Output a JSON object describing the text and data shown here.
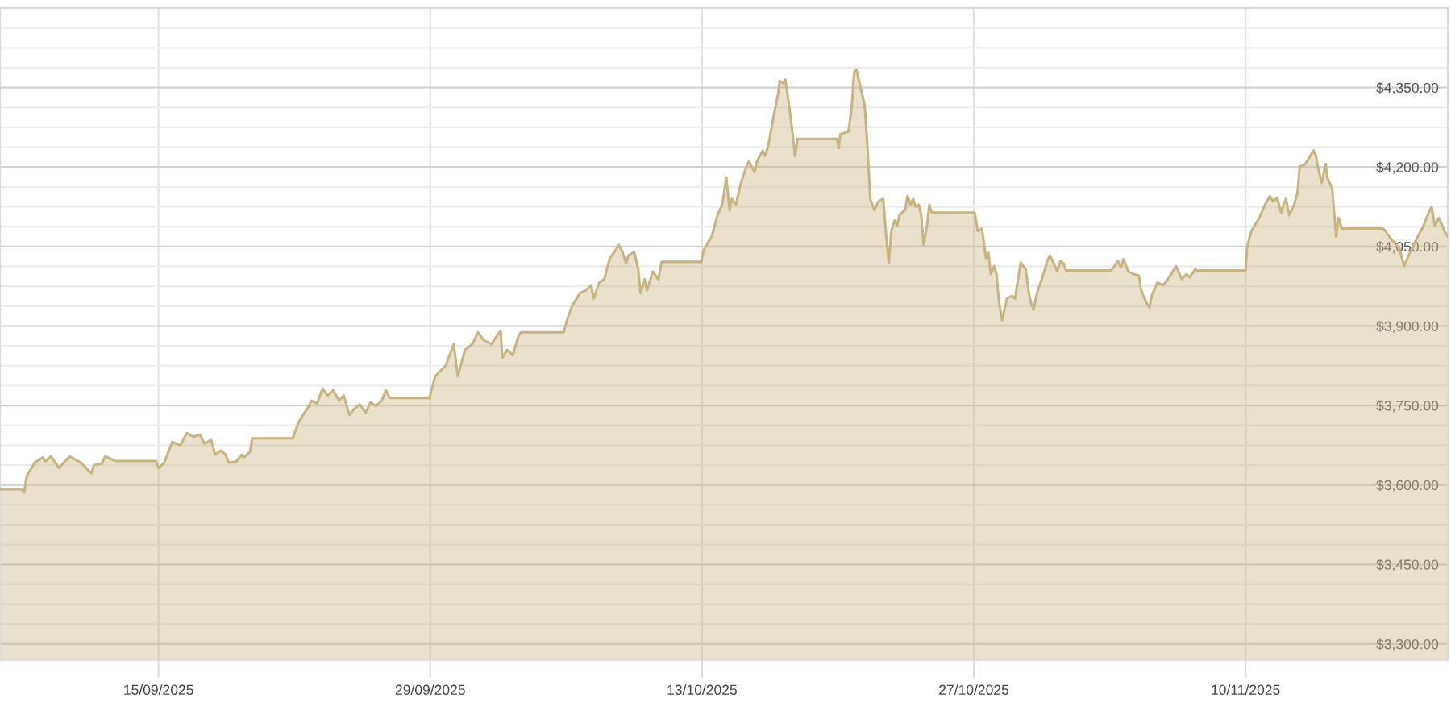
{
  "chart_data": {
    "type": "area",
    "x": [
      "2025-09-06T20:00",
      "2025-09-07T22:00",
      "2025-09-08T02:00",
      "2025-09-08T05:00",
      "2025-09-08T15:00",
      "2025-09-09T01:00",
      "2025-09-09T04:00",
      "2025-09-09T11:00",
      "2025-09-09T21:00",
      "2025-09-10T10:00",
      "2025-09-11T00:00",
      "2025-09-11T13:00",
      "2025-09-11T16:00",
      "2025-09-12T02:00",
      "2025-09-12T06:00",
      "2025-09-12T12:00",
      "2025-09-12T19:00",
      "2025-09-14T21:00",
      "2025-09-15T00:00",
      "2025-09-15T07:00",
      "2025-09-15T17:00",
      "2025-09-16T03:00",
      "2025-09-16T11:00",
      "2025-09-16T19:00",
      "2025-09-17T03:00",
      "2025-09-17T09:00",
      "2025-09-17T17:00",
      "2025-09-17T22:00",
      "2025-09-18T05:00",
      "2025-09-18T11:00",
      "2025-09-18T15:00",
      "2025-09-19T00:00",
      "2025-09-19T07:00",
      "2025-09-19T10:00",
      "2025-09-19T17:00",
      "2025-09-19T20:00",
      "2025-09-21T22:00",
      "2025-09-22T05:00",
      "2025-09-22T11:00",
      "2025-09-22T18:00",
      "2025-09-22T21:00",
      "2025-09-23T04:00",
      "2025-09-23T11:00",
      "2025-09-23T17:00",
      "2025-09-24T00:00",
      "2025-09-24T07:00",
      "2025-09-24T13:00",
      "2025-09-24T20:00",
      "2025-09-25T02:00",
      "2025-09-25T09:00",
      "2025-09-25T16:00",
      "2025-09-25T22:00",
      "2025-09-26T05:00",
      "2025-09-26T12:00",
      "2025-09-26T17:00",
      "2025-09-26T22:00",
      "2025-09-28T23:00",
      "2025-09-29T06:00",
      "2025-09-29T19:00",
      "2025-09-30T05:00",
      "2025-09-30T10:00",
      "2025-09-30T19:00",
      "2025-10-01T04:00",
      "2025-10-01T11:00",
      "2025-10-01T18:00",
      "2025-10-02T04:00",
      "2025-10-02T10:00",
      "2025-10-02T15:00",
      "2025-10-02T17:00",
      "2025-10-02T23:00",
      "2025-10-03T06:00",
      "2025-10-03T13:00",
      "2025-10-03T16:00",
      "2025-10-05T21:00",
      "2025-10-06T01:00",
      "2025-10-06T07:00",
      "2025-10-06T17:00",
      "2025-10-07T00:00",
      "2025-10-07T07:00",
      "2025-10-07T10:00",
      "2025-10-07T17:00",
      "2025-10-07T23:00",
      "2025-10-08T06:00",
      "2025-10-08T13:00",
      "2025-10-08T17:00",
      "2025-10-08T22:00",
      "2025-10-09T02:00",
      "2025-10-09T05:00",
      "2025-10-09T12:00",
      "2025-10-09T17:00",
      "2025-10-09T20:00",
      "2025-10-10T01:00",
      "2025-10-10T04:00",
      "2025-10-10T11:00",
      "2025-10-10T18:00",
      "2025-10-10T22:00",
      "2025-10-12T23:00",
      "2025-10-13T02:00",
      "2025-10-13T12:00",
      "2025-10-13T19:00",
      "2025-10-14T01:00",
      "2025-10-14T06:00",
      "2025-10-14T10:00",
      "2025-10-14T13:00",
      "2025-10-14T18:00",
      "2025-10-15T00:00",
      "2025-10-15T07:00",
      "2025-10-15T10:00",
      "2025-10-15T17:00",
      "2025-10-15T20:00",
      "2025-10-16T03:00",
      "2025-10-16T06:00",
      "2025-10-16T10:00",
      "2025-10-16T16:00",
      "2025-10-16T22:00",
      "2025-10-17T00:00",
      "2025-10-17T04:00",
      "2025-10-17T07:00",
      "2025-10-17T12:00",
      "2025-10-17T16:00",
      "2025-10-17T19:00",
      "2025-10-17T22:00",
      "2025-10-19T23:00",
      "2025-10-20T01:00",
      "2025-10-20T03:00",
      "2025-10-20T13:00",
      "2025-10-20T17:00",
      "2025-10-20T20:00",
      "2025-10-20T23:00",
      "2025-10-21T02:00",
      "2025-10-21T09:00",
      "2025-10-21T12:00",
      "2025-10-21T16:00",
      "2025-10-21T21:00",
      "2025-10-22T02:00",
      "2025-10-22T08:00",
      "2025-10-22T12:00",
      "2025-10-22T15:00",
      "2025-10-22T18:00",
      "2025-10-22T22:00",
      "2025-10-23T01:00",
      "2025-10-23T04:00",
      "2025-10-23T11:00",
      "2025-10-23T14:00",
      "2025-10-23T18:00",
      "2025-10-23T21:00",
      "2025-10-24T00:00",
      "2025-10-24T04:00",
      "2025-10-24T07:00",
      "2025-10-24T10:00",
      "2025-10-24T14:00",
      "2025-10-24T17:00",
      "2025-10-24T20:00",
      "2025-10-27T01:00",
      "2025-10-27T05:00",
      "2025-10-27T10:00",
      "2025-10-27T15:00",
      "2025-10-27T18:00",
      "2025-10-27T21:00",
      "2025-10-28T01:00",
      "2025-10-28T04:00",
      "2025-10-28T07:00",
      "2025-10-28T11:00",
      "2025-10-28T17:00",
      "2025-10-28T23:00",
      "2025-10-29T03:00",
      "2025-10-29T06:00",
      "2025-10-29T10:00",
      "2025-10-29T13:00",
      "2025-10-29T16:00",
      "2025-10-29T20:00",
      "2025-10-29T23:00",
      "2025-10-30T02:00",
      "2025-10-30T06:00",
      "2025-10-30T12:00",
      "2025-10-30T19:00",
      "2025-10-30T22:00",
      "2025-10-31T03:00",
      "2025-10-31T07:00",
      "2025-10-31T11:00",
      "2025-10-31T15:00",
      "2025-10-31T18:00",
      "2025-11-03T02:00",
      "2025-11-03T06:00",
      "2025-11-03T10:00",
      "2025-11-03T14:00",
      "2025-11-03T17:00",
      "2025-11-03T23:00",
      "2025-11-04T05:00",
      "2025-11-04T12:00",
      "2025-11-04T15:00",
      "2025-11-04T22:00",
      "2025-11-05T01:00",
      "2025-11-05T04:00",
      "2025-11-05T11:00",
      "2025-11-05T18:00",
      "2025-11-06T00:00",
      "2025-11-06T10:00",
      "2025-11-06T17:00",
      "2025-11-06T23:00",
      "2025-11-07T03:00",
      "2025-11-07T10:00",
      "2025-11-07T13:00",
      "2025-11-07T16:00",
      "2025-11-10T00:00",
      "2025-11-10T02:00",
      "2025-11-10T07:00",
      "2025-11-10T17:00",
      "2025-11-11T00:00",
      "2025-11-11T06:00",
      "2025-11-11T10:00",
      "2025-11-11T15:00",
      "2025-11-11T20:00",
      "2025-11-11T23:00",
      "2025-11-12T02:00",
      "2025-11-12T06:00",
      "2025-11-12T12:00",
      "2025-11-12T16:00",
      "2025-11-12T19:00",
      "2025-11-13T02:00",
      "2025-11-13T08:00",
      "2025-11-13T12:00",
      "2025-11-13T15:00",
      "2025-11-13T18:00",
      "2025-11-13T22:00",
      "2025-11-14T03:00",
      "2025-11-14T05:00",
      "2025-11-14T11:00",
      "2025-11-14T16:00",
      "2025-11-14T19:00",
      "2025-11-14T23:00",
      "2025-11-17T02:00",
      "2025-11-17T05:00",
      "2025-11-17T12:00",
      "2025-11-17T22:00",
      "2025-11-18T04:00",
      "2025-11-18T11:00",
      "2025-11-18T21:00",
      "2025-11-19T04:00",
      "2025-11-19T09:00",
      "2025-11-19T14:00",
      "2025-11-19T18:00",
      "2025-11-19T23:00",
      "2025-11-20T06:00",
      "2025-11-20T10:00"
    ],
    "series": [
      {
        "color": "#c8b480",
        "values": [
          3592,
          3592,
          3586,
          3617,
          3642,
          3652,
          3644,
          3654,
          3632,
          3654,
          3642,
          3622,
          3637,
          3640,
          3654,
          3650,
          3645,
          3645,
          3632,
          3642,
          3681,
          3675,
          3698,
          3691,
          3695,
          3678,
          3685,
          3657,
          3665,
          3657,
          3642,
          3644,
          3657,
          3652,
          3662,
          3688,
          3688,
          3718,
          3733,
          3749,
          3759,
          3754,
          3782,
          3769,
          3779,
          3759,
          3769,
          3732,
          3744,
          3752,
          3736,
          3756,
          3749,
          3759,
          3779,
          3764,
          3764,
          3805,
          3825,
          3866,
          3805,
          3855,
          3866,
          3888,
          3873,
          3866,
          3881,
          3891,
          3840,
          3855,
          3845,
          3881,
          3888,
          3888,
          3911,
          3937,
          3962,
          3967,
          3977,
          3952,
          3982,
          3988,
          4028,
          4043,
          4053,
          4038,
          4018,
          4033,
          4040,
          4008,
          3962,
          3988,
          3967,
          4003,
          3988,
          4021,
          4021,
          4043,
          4069,
          4109,
          4129,
          4180,
          4119,
          4140,
          4129,
          4170,
          4201,
          4211,
          4190,
          4211,
          4231,
          4221,
          4241,
          4292,
          4338,
          4363,
          4358,
          4365,
          4312,
          4262,
          4221,
          4253,
          4253,
          4236,
          4262,
          4267,
          4312,
          4378,
          4384,
          4363,
          4317,
          4251,
          4140,
          4119,
          4135,
          4140,
          4064,
          4020,
          4079,
          4099,
          4089,
          4109,
          4119,
          4145,
          4129,
          4140,
          4125,
          4129,
          4109,
          4053,
          4089,
          4129,
          4114,
          4114,
          4079,
          4084,
          4028,
          4038,
          3998,
          4013,
          3998,
          3947,
          3911,
          3952,
          3957,
          3952,
          3982,
          4020,
          4013,
          4008,
          3962,
          3942,
          3931,
          3962,
          3988,
          4023,
          4033,
          4018,
          4003,
          4023,
          4018,
          4005,
          4005,
          4013,
          4023,
          4011,
          4026,
          4003,
          3998,
          3995,
          3967,
          3942,
          3935,
          3957,
          3982,
          3977,
          3988,
          4013,
          3988,
          3998,
          3992,
          4008,
          4003,
          4005,
          4005,
          4050,
          4079,
          4104,
          4129,
          4145,
          4135,
          4142,
          4114,
          4129,
          4140,
          4109,
          4129,
          4150,
          4201,
          4206,
          4221,
          4231,
          4221,
          4196,
          4170,
          4206,
          4180,
          4160,
          4069,
          4104,
          4084,
          4084,
          4079,
          4064,
          4048,
          4013,
          4038,
          4069,
          4089,
          4109,
          4125,
          4089,
          4104,
          4079,
          4069
        ]
      }
    ],
    "xlim": [
      "2025-09-06T20:00",
      "2025-11-20T10:00"
    ],
    "xticks": [
      {
        "value": "2025-09-15",
        "label": "15/09/2025"
      },
      {
        "value": "2025-09-29",
        "label": "29/09/2025"
      },
      {
        "value": "2025-10-13",
        "label": "13/10/2025"
      },
      {
        "value": "2025-10-27",
        "label": "27/10/2025"
      },
      {
        "value": "2025-11-10",
        "label": "10/11/2025"
      }
    ],
    "ylim": [
      3270,
      4500
    ],
    "yticks": [
      {
        "value": 3300,
        "label": "$3,300.00"
      },
      {
        "value": 3337.5,
        "label": null
      },
      {
        "value": 3375,
        "label": null
      },
      {
        "value": 3412.5,
        "label": null
      },
      {
        "value": 3450,
        "label": "$3,450.00"
      },
      {
        "value": 3487.5,
        "label": null
      },
      {
        "value": 3525,
        "label": null
      },
      {
        "value": 3562.5,
        "label": null
      },
      {
        "value": 3600,
        "label": "$3,600.00"
      },
      {
        "value": 3637.5,
        "label": null
      },
      {
        "value": 3675,
        "label": null
      },
      {
        "value": 3712.5,
        "label": null
      },
      {
        "value": 3750,
        "label": "$3,750.00"
      },
      {
        "value": 3787.5,
        "label": null
      },
      {
        "value": 3825,
        "label": null
      },
      {
        "value": 3862.5,
        "label": null
      },
      {
        "value": 3900,
        "label": "$3,900.00"
      },
      {
        "value": 3937.5,
        "label": null
      },
      {
        "value": 3975,
        "label": null
      },
      {
        "value": 4012.5,
        "label": null
      },
      {
        "value": 4050,
        "label": "$4,050.00"
      },
      {
        "value": 4087.5,
        "label": null
      },
      {
        "value": 4125,
        "label": null
      },
      {
        "value": 4162.5,
        "label": null
      },
      {
        "value": 4200,
        "label": "$4,200.00"
      },
      {
        "value": 4237.5,
        "label": null
      },
      {
        "value": 4275,
        "label": null
      },
      {
        "value": 4312.5,
        "label": null
      },
      {
        "value": 4350,
        "label": "$4,350.00"
      },
      {
        "value": 4387.5,
        "label": null
      },
      {
        "value": 4425,
        "label": null
      },
      {
        "value": 4462.5,
        "label": null
      },
      {
        "value": 4500,
        "label": null
      }
    ],
    "grid": true
  }
}
